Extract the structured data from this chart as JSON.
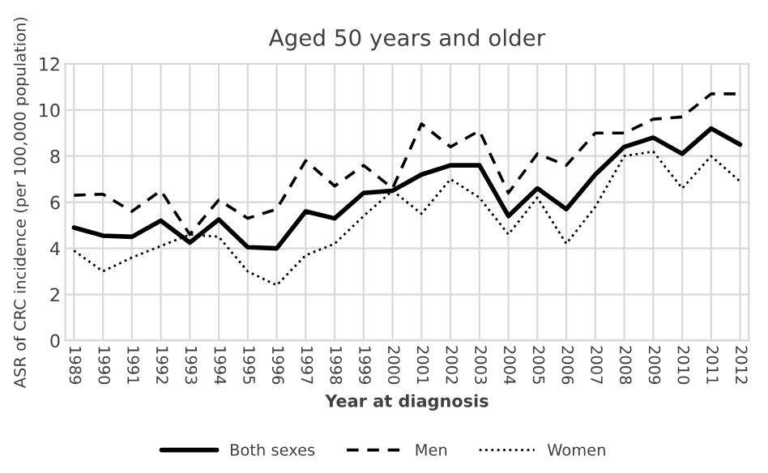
{
  "chart_data": {
    "type": "line",
    "title": "Aged 50 years and older",
    "xlabel": "Year at diagnosis",
    "ylabel": "ASR of CRC incidence (per 100,000 population)",
    "categories": [
      "1989",
      "1990",
      "1991",
      "1992",
      "1993",
      "1994",
      "1995",
      "1996",
      "1997",
      "1998",
      "1999",
      "2000",
      "2001",
      "2002",
      "2003",
      "2004",
      "2005",
      "2006",
      "2007",
      "2008",
      "2009",
      "2010",
      "2011",
      "2012"
    ],
    "series": [
      {
        "name": "Both sexes",
        "color": "#000000",
        "line_style": "solid",
        "values": [
          4.9,
          4.55,
          4.5,
          5.2,
          4.25,
          5.25,
          4.05,
          4.0,
          5.6,
          5.3,
          6.4,
          6.5,
          7.2,
          7.6,
          7.6,
          5.4,
          6.6,
          5.7,
          7.2,
          8.4,
          8.8,
          8.1,
          9.2,
          8.5
        ]
      },
      {
        "name": "Men",
        "color": "#000000",
        "line_style": "dashed",
        "values": [
          6.3,
          6.35,
          5.6,
          6.5,
          4.6,
          6.1,
          5.3,
          5.7,
          7.8,
          6.7,
          7.6,
          6.6,
          9.4,
          8.4,
          9.1,
          6.4,
          8.1,
          7.6,
          9.0,
          9.0,
          9.6,
          9.7,
          10.7,
          10.7
        ]
      },
      {
        "name": "Women",
        "color": "#000000",
        "line_style": "dotted",
        "values": [
          3.9,
          3.0,
          3.6,
          4.1,
          4.6,
          4.5,
          3.0,
          2.4,
          3.7,
          4.2,
          5.4,
          6.5,
          5.5,
          7.0,
          6.2,
          4.6,
          6.2,
          4.2,
          5.8,
          8.0,
          8.2,
          6.6,
          8.0,
          6.9
        ]
      }
    ],
    "ylim": [
      0,
      12
    ],
    "yticks": [
      0,
      2,
      4,
      6,
      8,
      10,
      12
    ],
    "grid": true,
    "legend": "bottom",
    "marker": "none"
  }
}
